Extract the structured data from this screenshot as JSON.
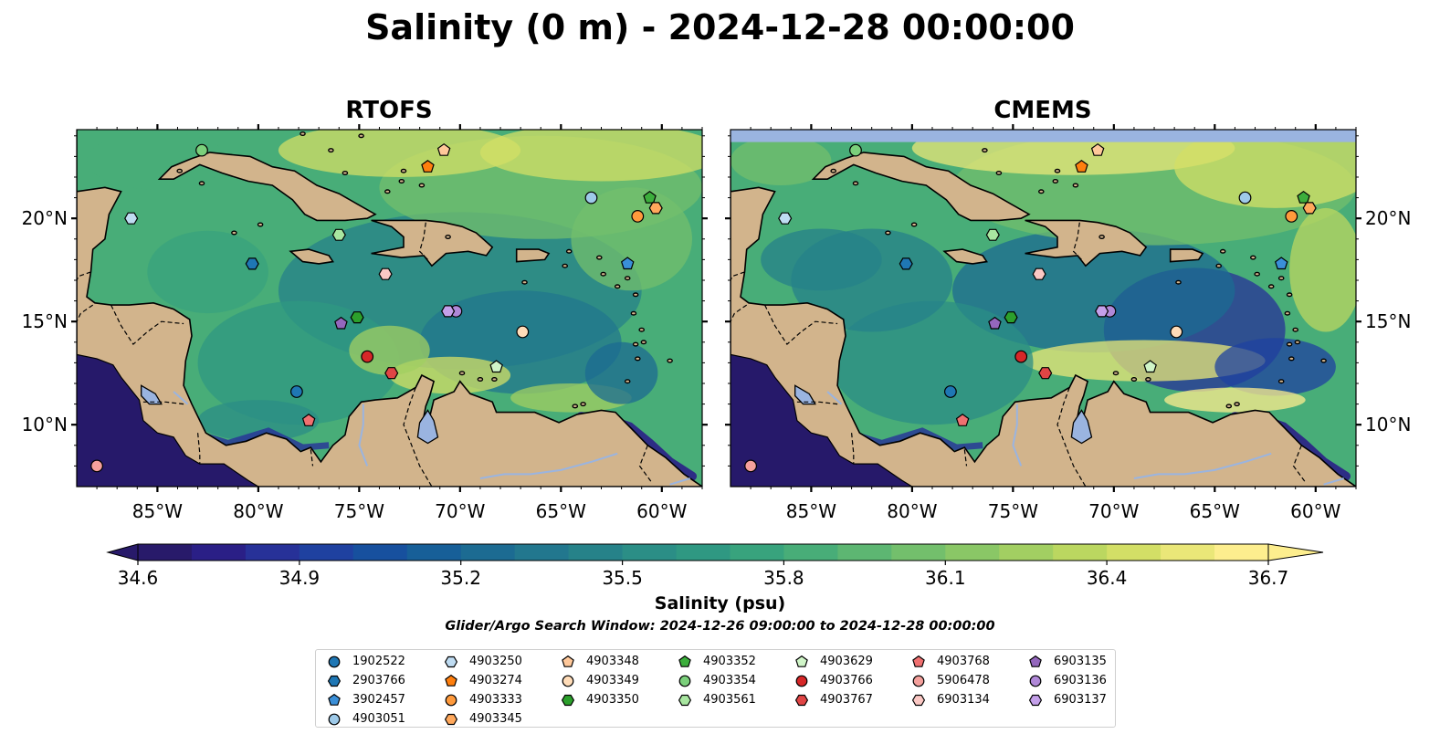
{
  "title": "Salinity (0 m) - 2024-12-28 00:00:00",
  "panels": [
    {
      "title": "RTOFS"
    },
    {
      "title": "CMEMS"
    }
  ],
  "lon_ticks": [
    "85°W",
    "80°W",
    "75°W",
    "70°W",
    "65°W",
    "60°W"
  ],
  "lat_ticks": [
    "20°N",
    "15°N",
    "10°N"
  ],
  "colorbar": {
    "label": "Salinity (psu)",
    "ticks": [
      "34.6",
      "34.9",
      "35.2",
      "35.5",
      "35.8",
      "36.1",
      "36.4",
      "36.7"
    ],
    "min": 34.6,
    "max": 36.7,
    "colors": [
      "#281a6a",
      "#2a1f86",
      "#273198",
      "#1f41a0",
      "#17509e",
      "#175f98",
      "#1c6b92",
      "#22778e",
      "#268289",
      "#2b8e86",
      "#2f9882",
      "#38a37d",
      "#48ad78",
      "#5db672",
      "#73bf6c",
      "#8ac766",
      "#a2cf62",
      "#bbd760",
      "#d3df66",
      "#eae778",
      "#fdee8e"
    ]
  },
  "window_note": "Glider/Argo Search Window: 2024-12-26 09:00:00 to 2024-12-28 00:00:00",
  "map_colors": {
    "land": "#d2b48c",
    "lake": "#9ab4e0",
    "deep": "#26196a",
    "cmems_nodata": "#9ab4e0"
  },
  "legend": [
    {
      "label": "1902522",
      "marker": "circle",
      "color": "#1f77b4"
    },
    {
      "label": "2903766",
      "marker": "hexagon",
      "color": "#1f77b4"
    },
    {
      "label": "3902457",
      "marker": "pentagon",
      "color": "#3a8fd8"
    },
    {
      "label": "4903051",
      "marker": "circle",
      "color": "#9ecae9"
    },
    {
      "label": "4903250",
      "marker": "hexagon",
      "color": "#bfdcf2"
    },
    {
      "label": "4903274",
      "marker": "pentagon",
      "color": "#ff7f0e"
    },
    {
      "label": "4903333",
      "marker": "circle",
      "color": "#ff9a3c"
    },
    {
      "label": "4903345",
      "marker": "hexagon",
      "color": "#ffa85c"
    },
    {
      "label": "4903348",
      "marker": "pentagon",
      "color": "#ffc89a"
    },
    {
      "label": "4903349",
      "marker": "circle",
      "color": "#ffdcb8"
    },
    {
      "label": "4903350",
      "marker": "hexagon",
      "color": "#2ca02c"
    },
    {
      "label": "4903352",
      "marker": "pentagon",
      "color": "#3cae3c"
    },
    {
      "label": "4903354",
      "marker": "circle",
      "color": "#7bd07b"
    },
    {
      "label": "4903561",
      "marker": "hexagon",
      "color": "#a8e6a0"
    },
    {
      "label": "4903629",
      "marker": "pentagon",
      "color": "#d0f5c8"
    },
    {
      "label": "4903766",
      "marker": "circle",
      "color": "#d62728"
    },
    {
      "label": "4903767",
      "marker": "hexagon",
      "color": "#e04545"
    },
    {
      "label": "4903768",
      "marker": "pentagon",
      "color": "#f07070"
    },
    {
      "label": "5906478",
      "marker": "circle",
      "color": "#f4a09c"
    },
    {
      "label": "6903134",
      "marker": "hexagon",
      "color": "#fbc8c4"
    },
    {
      "label": "6903135",
      "marker": "pentagon",
      "color": "#9467bd"
    },
    {
      "label": "6903136",
      "marker": "circle",
      "color": "#b088d8"
    },
    {
      "label": "6903137",
      "marker": "hexagon",
      "color": "#c4a0ea"
    }
  ],
  "floats": [
    {
      "id": "4903354",
      "lon": -82.8,
      "lat": 23.3
    },
    {
      "id": "4903348",
      "lon": -70.8,
      "lat": 23.3
    },
    {
      "id": "4903274",
      "lon": -71.6,
      "lat": 22.5
    },
    {
      "id": "4903051",
      "lon": -63.5,
      "lat": 21.0
    },
    {
      "id": "4903352",
      "lon": -60.6,
      "lat": 21.0
    },
    {
      "id": "4903333",
      "lon": -61.2,
      "lat": 20.1
    },
    {
      "id": "4903345",
      "lon": -60.3,
      "lat": 20.5
    },
    {
      "id": "4903250",
      "lon": -86.3,
      "lat": 20.0
    },
    {
      "id": "4903561",
      "lon": -76.0,
      "lat": 19.2
    },
    {
      "id": "2903766",
      "lon": -80.3,
      "lat": 17.8
    },
    {
      "id": "3902457",
      "lon": -61.7,
      "lat": 17.8
    },
    {
      "id": "6903134",
      "lon": -73.7,
      "lat": 17.3
    },
    {
      "id": "6903136",
      "lon": -70.2,
      "lat": 15.5
    },
    {
      "id": "6903137",
      "lon": -70.6,
      "lat": 15.5
    },
    {
      "id": "4903350",
      "lon": -75.1,
      "lat": 15.2
    },
    {
      "id": "6903135",
      "lon": -75.9,
      "lat": 14.9
    },
    {
      "id": "4903349",
      "lon": -66.9,
      "lat": 14.5
    },
    {
      "id": "4903766",
      "lon": -74.6,
      "lat": 13.3
    },
    {
      "id": "4903629",
      "lon": -68.2,
      "lat": 12.8
    },
    {
      "id": "4903767",
      "lon": -73.4,
      "lat": 12.5
    },
    {
      "id": "1902522",
      "lon": -78.1,
      "lat": 11.6
    },
    {
      "id": "4903768",
      "lon": -77.5,
      "lat": 10.2
    },
    {
      "id": "5906478",
      "lon": -88.0,
      "lat": 8.0
    }
  ]
}
